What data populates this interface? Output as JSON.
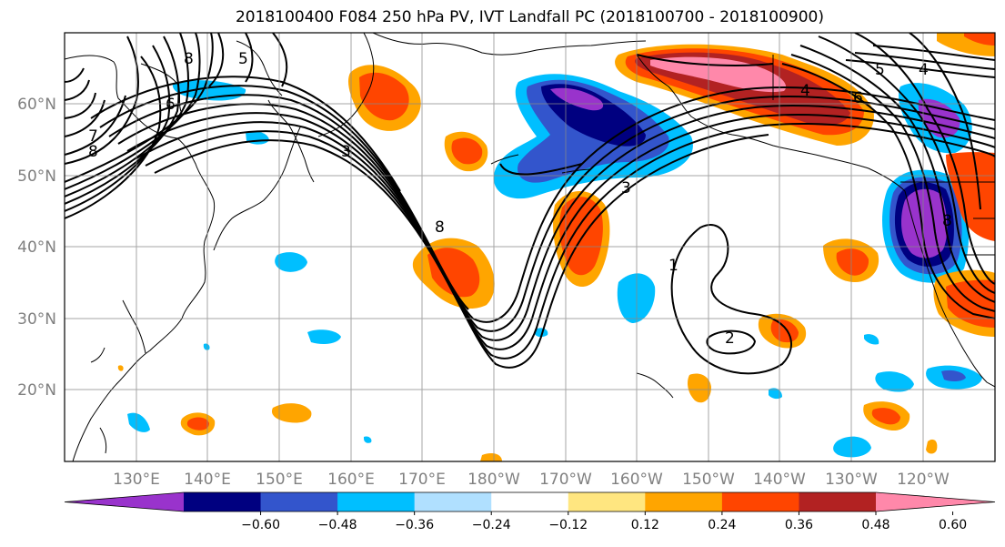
{
  "title": "2018100400 F084 250 hPa PV, IVT Landfall PC (2018100700 - 2018100900)",
  "lon_labels": [
    "130°E",
    "140°E",
    "150°E",
    "160°E",
    "170°E",
    "180°W",
    "170°W",
    "160°W",
    "150°W",
    "140°W",
    "130°W",
    "120°W"
  ],
  "lat_labels": [
    "60°N",
    "50°N",
    "40°N",
    "30°N",
    "20°N"
  ],
  "colorbar": {
    "colors": [
      "#9933cc",
      "#000080",
      "#3355cc",
      "#00bfff",
      "#b0e0ff",
      "#ffffff",
      "#ffe680",
      "#ffa500",
      "#ff4500",
      "#b22222",
      "#ff88aa"
    ],
    "ticks": [
      "−0.60",
      "−0.48",
      "−0.36",
      "−0.24",
      "−0.12",
      "0.12",
      "0.24",
      "0.36",
      "0.48",
      "0.60"
    ]
  },
  "contour_labels": [
    "5",
    "8",
    "6",
    "7",
    "8",
    "8",
    "3",
    "1",
    "2",
    "5",
    "4",
    "6",
    "8",
    "4",
    "3"
  ]
}
